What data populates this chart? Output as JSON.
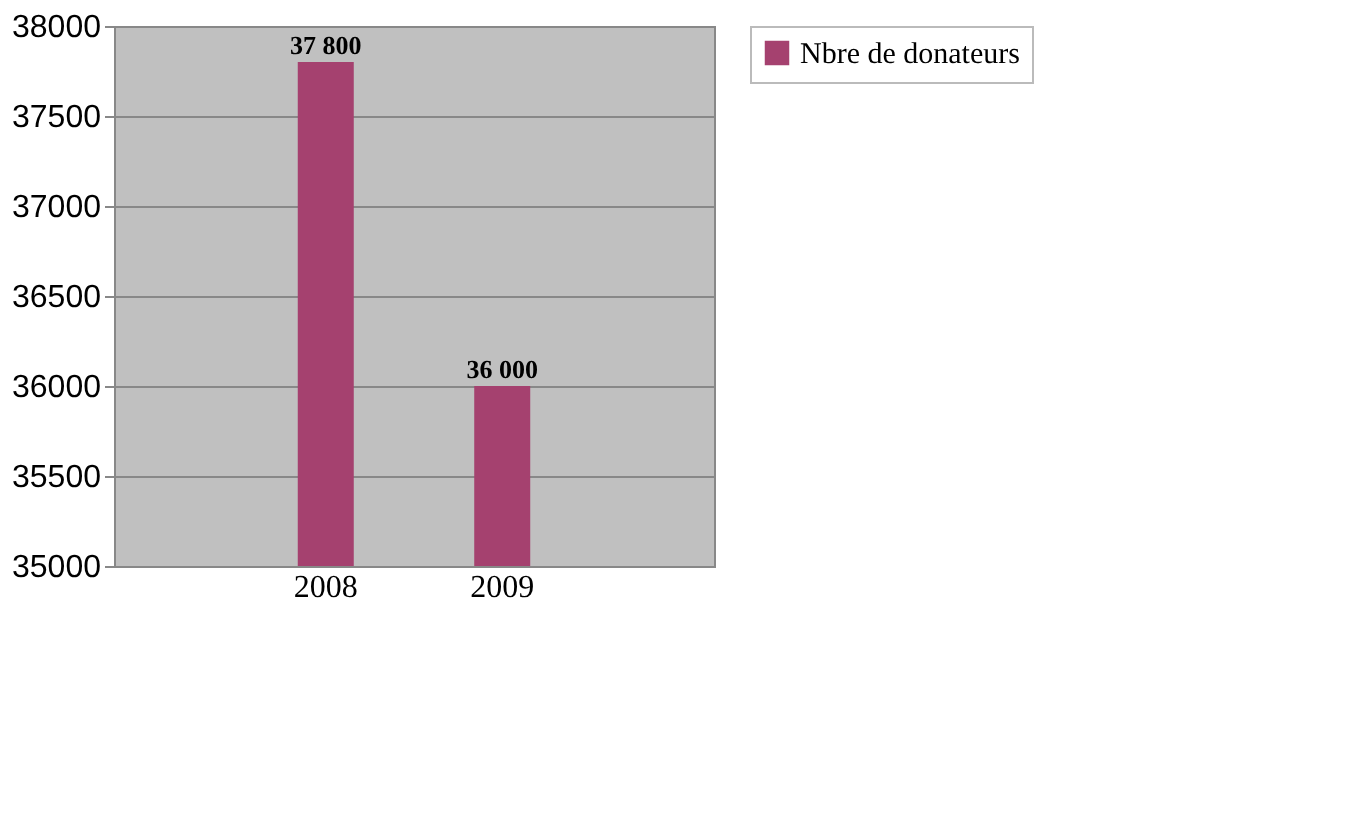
{
  "chart_data": {
    "type": "bar",
    "categories": [
      "2008",
      "2009"
    ],
    "series": [
      {
        "name": "Nbre de donateurs",
        "color": "#a5416f",
        "values": [
          37800,
          36000
        ],
        "value_labels": [
          "37 800",
          "36 000"
        ]
      }
    ],
    "ylim": [
      35000,
      38000
    ],
    "yticks": [
      35000,
      35500,
      36000,
      36500,
      37000,
      37500,
      38000
    ],
    "grid": "y",
    "legend": "right"
  }
}
